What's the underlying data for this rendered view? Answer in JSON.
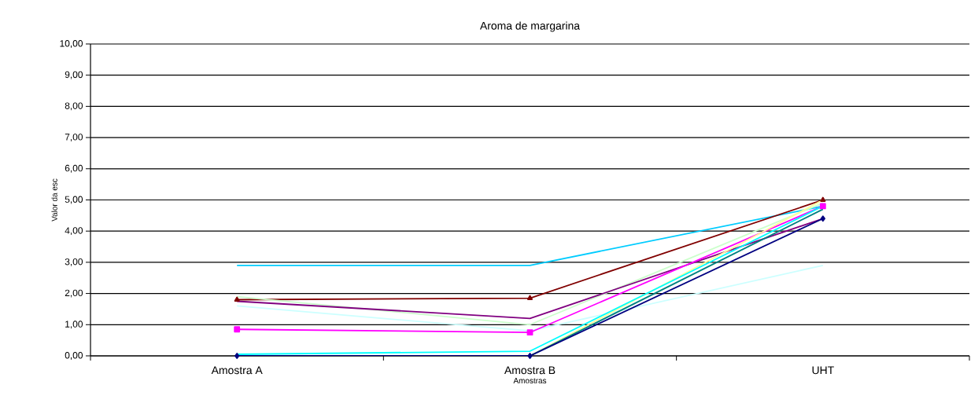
{
  "chart_data": {
    "type": "line",
    "title": "Aroma de margarina",
    "xlabel": "Amostras",
    "ylabel": "Valor da esc",
    "categories": [
      "Amostra A",
      "Amostra B",
      "UHT"
    ],
    "series": [
      {
        "color": "#00ccff",
        "values": [
          2.9,
          2.9,
          4.8
        ]
      },
      {
        "color": "#800000",
        "values": [
          1.8,
          1.85,
          5.0
        ],
        "marker": "triangle"
      },
      {
        "color": "#ccffcc",
        "values": [
          1.9,
          1.0,
          4.9
        ]
      },
      {
        "color": "#800080",
        "values": [
          1.75,
          1.2,
          4.4
        ]
      },
      {
        "color": "#ccffff",
        "values": [
          1.6,
          0.8,
          2.9
        ]
      },
      {
        "color": "#ff00ff",
        "values": [
          0.85,
          0.75,
          4.8
        ],
        "marker": "square"
      },
      {
        "color": "#ffff99",
        "values": [
          0.0,
          0.0,
          5.0
        ]
      },
      {
        "color": "#008080",
        "values": [
          0.0,
          0.0,
          4.7
        ]
      },
      {
        "color": "#000080",
        "values": [
          0.0,
          0.0,
          4.4
        ],
        "marker": "diamond"
      },
      {
        "color": "#00ffff",
        "values": [
          0.05,
          0.15,
          4.8
        ]
      }
    ],
    "ylim": [
      0,
      10
    ],
    "yticks": [
      {
        "value": 0,
        "label": "0,00"
      },
      {
        "value": 1,
        "label": "1,00"
      },
      {
        "value": 2,
        "label": "2,00"
      },
      {
        "value": 3,
        "label": "3,00"
      },
      {
        "value": 4,
        "label": "4,00"
      },
      {
        "value": 5,
        "label": "5,00"
      },
      {
        "value": 6,
        "label": "6,00"
      },
      {
        "value": 7,
        "label": "7,00"
      },
      {
        "value": 8,
        "label": "8,00"
      },
      {
        "value": 9,
        "label": "9,00"
      },
      {
        "value": 10,
        "label": "10,00"
      }
    ],
    "grid": "y"
  }
}
